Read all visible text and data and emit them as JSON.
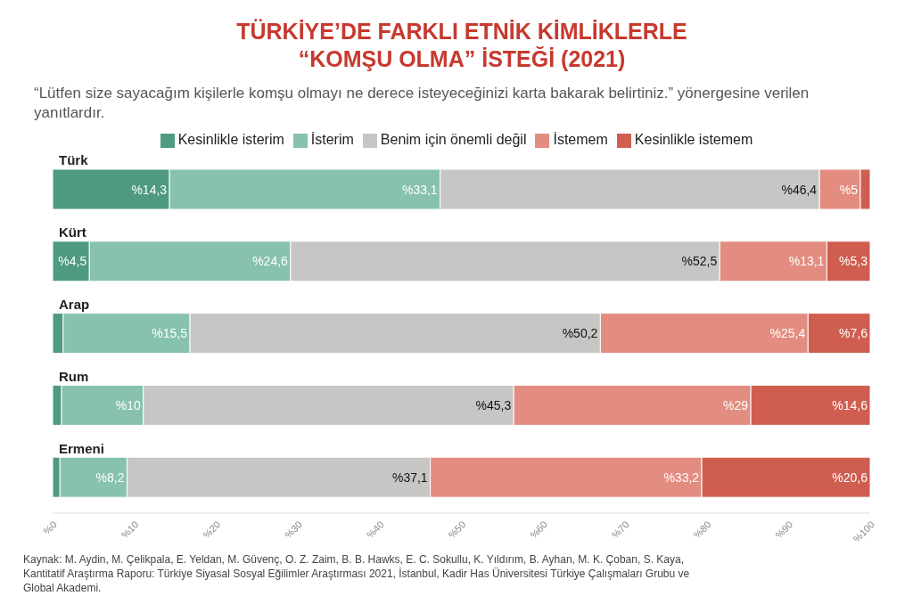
{
  "chart_data": {
    "type": "bar",
    "orientation": "horizontal",
    "stacked": true,
    "title": "TÜRKİYE’DE FARKLI ETNİK KİMLİKLERLE “KOMŞU OLMA” İSTEĞİ (2021)",
    "subtitle": "“Lütfen size sayacağım kişilerle komşu olmayı ne derece isteyeceğinizi karta bakarak belirtiniz.” yönergesine verilen yanıtlardır.",
    "categories": [
      "Türk",
      "Kürt",
      "Arap",
      "Rum",
      "Ermeni"
    ],
    "series": [
      {
        "name": "Kesinlikle isterim",
        "color": "#4e9a82",
        "values": [
          14.3,
          4.5,
          1.3,
          1.1,
          0.9
        ],
        "value_labels": [
          "%14,3",
          "%4,5",
          null,
          null,
          null
        ]
      },
      {
        "name": "İsterim",
        "color": "#86c2ad",
        "values": [
          33.1,
          24.6,
          15.5,
          10,
          8.2
        ],
        "value_labels": [
          "%33,1",
          "%24,6",
          "%15,5",
          "%10",
          "%8,2"
        ]
      },
      {
        "name": "Benim için önemli değil",
        "color": "#c8c6c5",
        "values": [
          46.4,
          52.5,
          50.2,
          45.3,
          37.1
        ],
        "value_labels": [
          "%46,4",
          "%52,5",
          "%50,2",
          "%45,3",
          "%37,1"
        ]
      },
      {
        "name": "İstemem",
        "color": "#e38c80",
        "values": [
          5,
          13.1,
          25.4,
          29,
          33.2
        ],
        "value_labels": [
          "%5",
          "%13,1",
          "%25,4",
          "%29",
          "%33,2"
        ]
      },
      {
        "name": "Kesinlikle istemem",
        "color": "#cf5e50",
        "values": [
          1.2,
          5.3,
          7.6,
          14.6,
          20.6
        ],
        "value_labels": [
          null,
          "%5,3",
          "%7,6",
          "%14,6",
          "%20,6"
        ]
      }
    ],
    "xlim": [
      0,
      100
    ],
    "xticks": [
      {
        "value": 0,
        "label": "%0"
      },
      {
        "value": 10,
        "label": "%10"
      },
      {
        "value": 20,
        "label": "%20"
      },
      {
        "value": 30,
        "label": "%30"
      },
      {
        "value": 40,
        "label": "%40"
      },
      {
        "value": 50,
        "label": "%50"
      },
      {
        "value": 60,
        "label": "%60"
      },
      {
        "value": 70,
        "label": "%70"
      },
      {
        "value": 80,
        "label": "%80"
      },
      {
        "value": 90,
        "label": "%90"
      },
      {
        "value": 100,
        "label": "%100"
      }
    ],
    "legend": "top",
    "annotations": [
      "Kaynak: M. Aydin, M. Çelikpala, E. Yeldan, M. Güvenç, O. Z. Zaim, B. B. Hawks, E. C. Sokullu, K. Yıldırım, B. Ayhan, M. K. Çoban, S. Kaya, Kantitatif Araştırma Raporu: Türkiye Siyasal Sosyal Eğilimler Araştırması 2021, İstanbul, Kadir Has Üniversitesi Türkiye Çalışmaları Grubu ve Global Akademi."
    ]
  }
}
